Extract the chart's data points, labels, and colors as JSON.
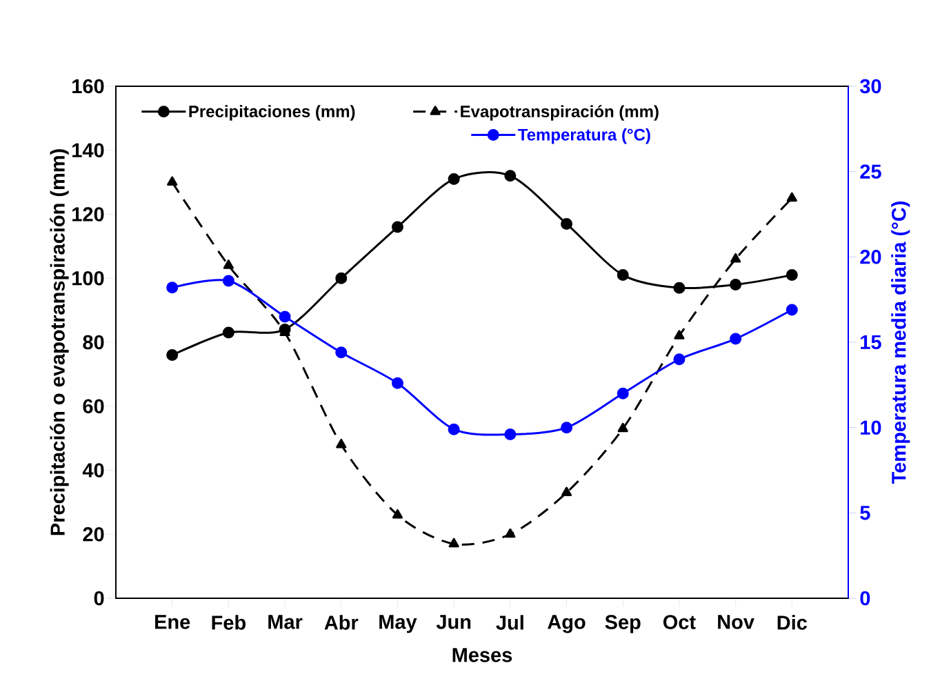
{
  "chart_data": {
    "type": "line",
    "categories": [
      "Ene",
      "Feb",
      "Mar",
      "Abr",
      "May",
      "Jun",
      "Jul",
      "Ago",
      "Sep",
      "Oct",
      "Nov",
      "Dic"
    ],
    "xlabel": "Meses",
    "ylabel": "Precipitación o evapotranspiración (mm)",
    "y2label": "Temperatura media diaria (°C)",
    "ylim": [
      0,
      160
    ],
    "yticks": [
      0,
      20,
      40,
      60,
      80,
      100,
      120,
      140,
      160
    ],
    "y2lim": [
      0,
      30
    ],
    "y2ticks": [
      0,
      5,
      10,
      15,
      20,
      25,
      30
    ],
    "legend": "top",
    "series": [
      {
        "name": "Precipitaciones (mm)",
        "color": "#000000",
        "marker": "circle",
        "line_style": "solid",
        "axis": "y",
        "values": [
          76,
          83,
          84,
          100,
          116,
          131,
          132,
          117,
          101,
          97,
          98,
          101
        ]
      },
      {
        "name": "Evapotranspiración (mm)",
        "color": "#000000",
        "marker": "triangle",
        "line_style": "dashed",
        "axis": "y",
        "values": [
          130,
          104,
          83,
          48,
          26,
          17,
          20,
          33,
          53,
          82,
          106,
          125
        ]
      },
      {
        "name": "Temperatura (°C)",
        "color": "#0000ff",
        "marker": "circle",
        "line_style": "solid",
        "axis": "y2",
        "values": [
          18.2,
          18.6,
          16.5,
          14.4,
          12.6,
          9.9,
          9.6,
          10.0,
          12.0,
          14.0,
          15.2,
          16.9
        ]
      }
    ]
  }
}
